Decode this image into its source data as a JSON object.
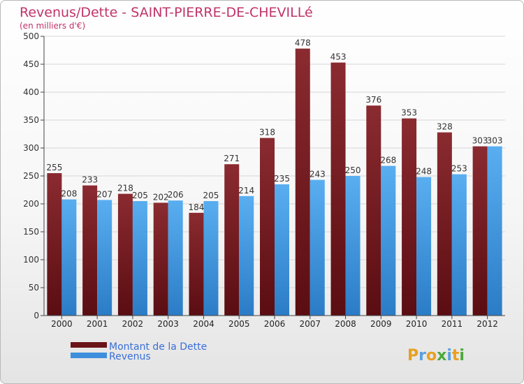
{
  "header": {
    "title": "Revenus/Dette - SAINT-PIERRE-DE-CHEVILLé",
    "subtitle": "(en milliers d'€)"
  },
  "colors": {
    "dette": "#7a1f24",
    "revenus": "#3d8fdc",
    "title": "#c0336a",
    "legend_text": "#3a6fd8"
  },
  "legend": {
    "items": [
      {
        "label": "Montant de la Dette",
        "color": "#7a1f24"
      },
      {
        "label": "Revenus",
        "color": "#3d8fdc"
      }
    ]
  },
  "logo": {
    "text": "Proxiti"
  },
  "chart_data": {
    "type": "bar",
    "categories": [
      "2000",
      "2001",
      "2002",
      "2003",
      "2004",
      "2005",
      "2006",
      "2007",
      "2008",
      "2009",
      "2010",
      "2011",
      "2012"
    ],
    "series": [
      {
        "name": "Montant de la Dette",
        "values": [
          255,
          233,
          218,
          202,
          184,
          271,
          318,
          478,
          453,
          376,
          353,
          328,
          303
        ]
      },
      {
        "name": "Revenus",
        "values": [
          208,
          207,
          205,
          206,
          205,
          214,
          235,
          243,
          250,
          268,
          248,
          253,
          303
        ]
      }
    ],
    "yticks": [
      0,
      50,
      100,
      150,
      200,
      250,
      300,
      350,
      400,
      450,
      500
    ],
    "ylim": [
      0,
      500
    ],
    "grid": true,
    "legend_position": "bottom-left",
    "data_labels": true
  }
}
